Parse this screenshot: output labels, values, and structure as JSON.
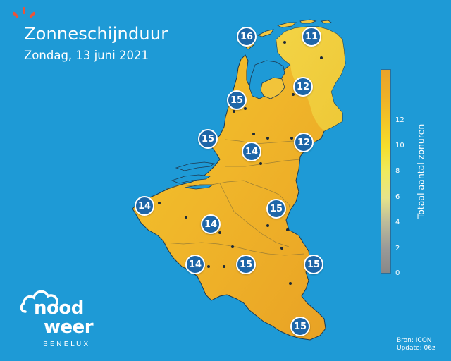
{
  "title": "Zonneschijnduur",
  "subtitle": "Zondag, 13 juni 2021",
  "colors": {
    "sea": "#1e9ad6",
    "marker_fill": "#1e66a8",
    "accent_sun": "#e8553c"
  },
  "markers": [
    {
      "name": "marker-den-helder",
      "value": "16"
    },
    {
      "name": "marker-groningen",
      "value": "11"
    },
    {
      "name": "marker-flevoland",
      "value": "12"
    },
    {
      "name": "marker-amsterdam",
      "value": "15"
    },
    {
      "name": "marker-zuid-holland",
      "value": "15"
    },
    {
      "name": "marker-brabant",
      "value": "14"
    },
    {
      "name": "marker-gelderland",
      "value": "12"
    },
    {
      "name": "marker-oostende",
      "value": "14"
    },
    {
      "name": "marker-brussel",
      "value": "14"
    },
    {
      "name": "marker-limburg",
      "value": "15"
    },
    {
      "name": "marker-zuid-belgie-west",
      "value": "14"
    },
    {
      "name": "marker-ardennen",
      "value": "15"
    },
    {
      "name": "marker-oost-belgie",
      "value": "15"
    },
    {
      "name": "marker-luxemburg",
      "value": "15"
    }
  ],
  "legend": {
    "label": "Totaal aantal zonuren",
    "ticks": [
      "12",
      "10",
      "8",
      "6",
      "4",
      "2",
      "0"
    ],
    "scale": {
      "min": 0,
      "max": 16,
      "gradient": "grey to yellow to orange"
    }
  },
  "logo": {
    "line1": "nood",
    "line2": "weer",
    "sub": "BENELUX"
  },
  "source": {
    "line1": "Bron: ICON",
    "line2": "Update: 06z"
  }
}
